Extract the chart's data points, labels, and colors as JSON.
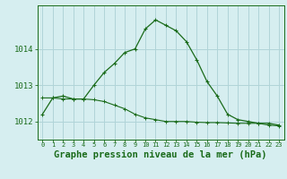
{
  "title": "Graphe pression niveau de la mer (hPa)",
  "background_color": "#d6eef0",
  "line_color": "#1a6b1a",
  "grid_color": "#b0d4d8",
  "hours": [
    0,
    1,
    2,
    3,
    4,
    5,
    6,
    7,
    8,
    9,
    10,
    11,
    12,
    13,
    14,
    15,
    16,
    17,
    18,
    19,
    20,
    21,
    22,
    23
  ],
  "series1": [
    1012.2,
    1012.65,
    1012.7,
    1012.62,
    1012.62,
    1013.0,
    1013.35,
    1013.6,
    1013.9,
    1014.0,
    1014.55,
    1014.8,
    1014.65,
    1014.5,
    1014.2,
    1013.7,
    1013.1,
    1012.7,
    1012.2,
    1012.05,
    1012.0,
    1011.95,
    1011.95,
    1011.9
  ],
  "series2": [
    1012.65,
    1012.65,
    1012.62,
    1012.62,
    1012.62,
    1012.6,
    1012.55,
    1012.45,
    1012.35,
    1012.2,
    1012.1,
    1012.05,
    1012.0,
    1012.0,
    1012.0,
    1011.98,
    1011.97,
    1011.97,
    1011.96,
    1011.95,
    1011.95,
    1011.95,
    1011.9,
    1011.88
  ],
  "ylim": [
    1011.5,
    1015.2
  ],
  "yticks": [
    1012,
    1013,
    1014
  ],
  "title_fontsize": 7.5
}
